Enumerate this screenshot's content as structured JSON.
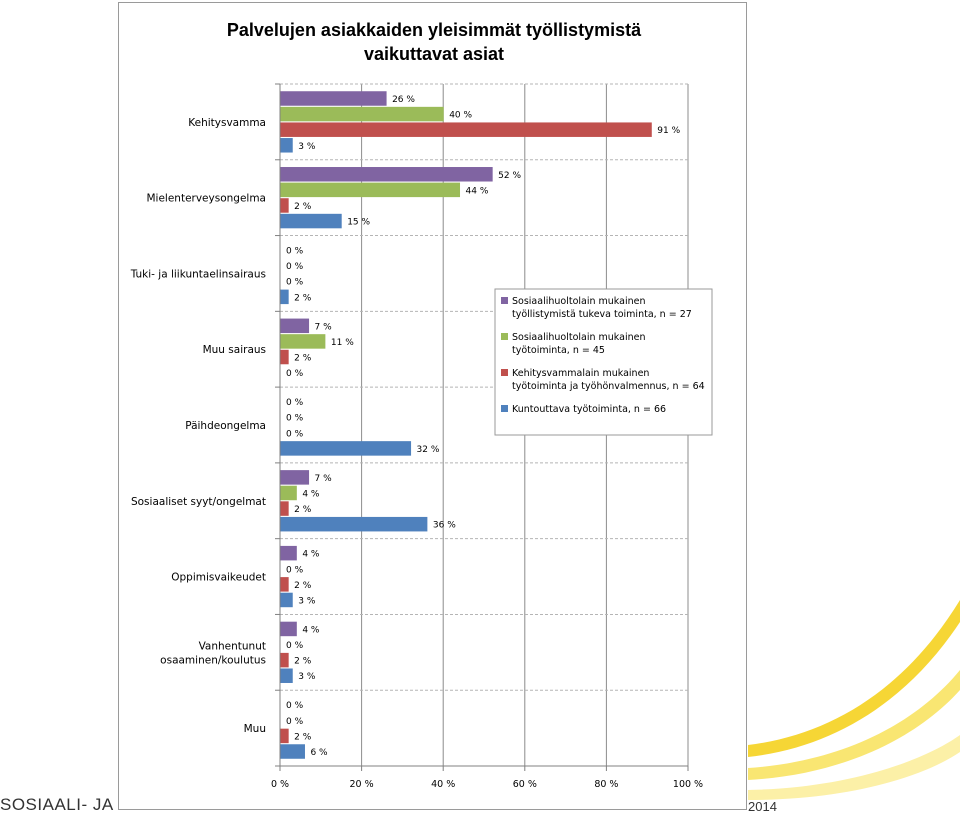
{
  "footer": {
    "left_text": "SOSIAALI- JA TE",
    "right_text": "2014"
  },
  "colors": {
    "decoration": "#f5d21f",
    "gridline": "#8c8c8c",
    "axis": "#808080"
  },
  "chart_data": {
    "type": "bar",
    "orientation": "horizontal",
    "title": "Palvelujen asiakkaiden yleisimmät työllistymistä vaikuttavat asiat",
    "title_lines": [
      "Palvelujen asiakkaiden yleisimmät työllistymistä",
      "vaikuttavat asiat"
    ],
    "xlabel": "",
    "ylabel": "",
    "xlim": [
      0,
      100
    ],
    "x_ticks": [
      0,
      20,
      40,
      60,
      80,
      100
    ],
    "x_tick_labels": [
      "0 %",
      "20 %",
      "40 %",
      "60 %",
      "80 %",
      "100 %"
    ],
    "grid": true,
    "legend_position": "right",
    "value_suffix": " %",
    "categories": [
      [
        "Kehitysvamma"
      ],
      [
        "Mielenterveysongelma"
      ],
      [
        "Tuki- ja liikuntaelinsairaus"
      ],
      [
        "Muu sairaus"
      ],
      [
        "Päihdeongelma"
      ],
      [
        "Sosiaaliset syyt/ongelmat"
      ],
      [
        "Oppimisvaikeudet"
      ],
      [
        "Vanhentunut",
        "osaaminen/koulutus"
      ],
      [
        "Muu"
      ]
    ],
    "series": [
      {
        "name": "Sosiaalihuoltolain mukainen työllistymistä tukeva toiminta, n = 27",
        "legend_lines": [
          "Sosiaalihuoltolain mukainen",
          "työllistymistä tukeva toiminta, n = 27"
        ],
        "color": "#8064a2",
        "values": [
          26,
          52,
          0,
          7,
          0,
          7,
          4,
          4,
          0
        ]
      },
      {
        "name": "Sosiaalihuoltolain mukainen työtoiminta, n = 45",
        "legend_lines": [
          "Sosiaalihuoltolain mukainen",
          "työtoiminta, n = 45"
        ],
        "color": "#9bbb59",
        "values": [
          40,
          44,
          0,
          11,
          0,
          4,
          0,
          0,
          0
        ]
      },
      {
        "name": "Kehitysvammalain mukainen työtoiminta ja työhönvalmennus, n = 64",
        "legend_lines": [
          "Kehitysvammalain mukainen",
          "työtoiminta ja työhönvalmennus, n = 64"
        ],
        "color": "#c0504d",
        "values": [
          91,
          2,
          0,
          2,
          0,
          2,
          2,
          2,
          2
        ]
      },
      {
        "name": "Kuntouttava työtoiminta, n = 66",
        "legend_lines": [
          "Kuntouttava työtoiminta, n = 66"
        ],
        "color": "#4f81bd",
        "values": [
          3,
          15,
          2,
          0,
          32,
          36,
          3,
          3,
          6
        ]
      }
    ]
  }
}
